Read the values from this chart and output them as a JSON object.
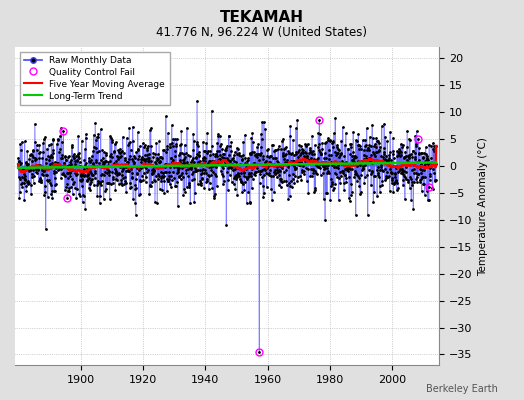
{
  "title": "TEKAMAH",
  "subtitle": "41.776 N, 96.224 W (United States)",
  "ylabel": "Temperature Anomaly (°C)",
  "credit": "Berkeley Earth",
  "year_start": 1880,
  "year_end": 2014,
  "ylim": [
    -37,
    22
  ],
  "yticks": [
    20,
    15,
    10,
    5,
    0,
    -5,
    -10,
    -15,
    -20,
    -25,
    -30,
    -35
  ],
  "xticks": [
    1900,
    1920,
    1940,
    1960,
    1980,
    2000
  ],
  "outer_bg_color": "#e0e0e0",
  "plot_bg_color": "#ffffff",
  "raw_line_color": "#4444ff",
  "raw_marker_color": "black",
  "qc_fail_color": "magenta",
  "moving_avg_color": "red",
  "trend_color": "#00cc00",
  "grid_color": "#aaaaaa",
  "seed": 77
}
